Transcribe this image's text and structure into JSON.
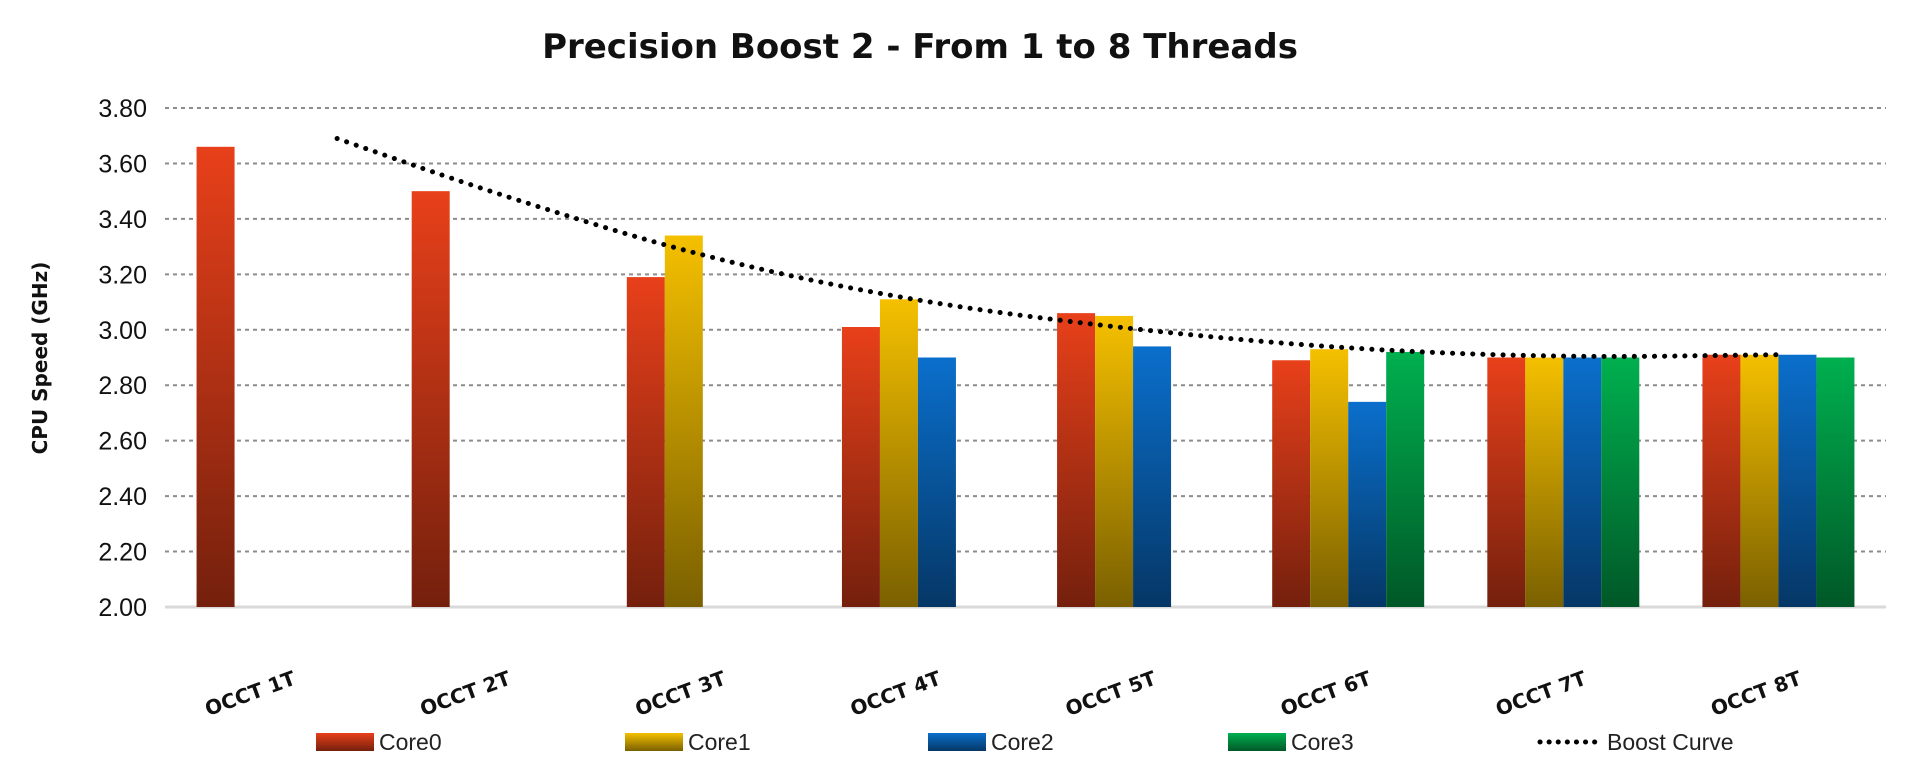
{
  "chart_data": {
    "type": "bar",
    "title": "Precision Boost 2 - From 1 to 8 Threads",
    "xlabel": "",
    "ylabel": "CPU Speed (GHz)",
    "ylim": [
      2.0,
      3.8
    ],
    "yticks": [
      "2.00",
      "2.20",
      "2.40",
      "2.60",
      "2.80",
      "3.00",
      "3.20",
      "3.40",
      "3.60",
      "3.80"
    ],
    "grid": true,
    "legend": "bottom",
    "categories": [
      "OCCT 1T",
      "OCCT 2T",
      "OCCT 3T",
      "OCCT 4T",
      "OCCT 5T",
      "OCCT 6T",
      "OCCT 7T",
      "OCCT 8T"
    ],
    "series": [
      {
        "name": "Core0",
        "color": "#e8401a",
        "values": [
          3.66,
          3.5,
          3.19,
          3.01,
          3.06,
          2.89,
          2.9,
          2.91
        ]
      },
      {
        "name": "Core1",
        "color": "#f5c000",
        "values": [
          null,
          null,
          3.34,
          3.11,
          3.05,
          2.93,
          2.9,
          2.91
        ]
      },
      {
        "name": "Core2",
        "color": "#0a6fcc",
        "values": [
          null,
          null,
          null,
          2.9,
          2.94,
          2.74,
          2.9,
          2.91
        ]
      },
      {
        "name": "Core3",
        "color": "#00b04f",
        "values": [
          null,
          null,
          null,
          null,
          null,
          2.92,
          2.9,
          2.9
        ]
      }
    ],
    "line_series": {
      "name": "Boost Curve",
      "style": "dotted",
      "color": "#000000",
      "x": [
        1.3,
        2,
        3,
        4,
        5,
        6,
        7,
        8
      ],
      "values": [
        3.69,
        3.5,
        3.26,
        3.1,
        3.0,
        2.93,
        2.9,
        2.91
      ]
    }
  }
}
